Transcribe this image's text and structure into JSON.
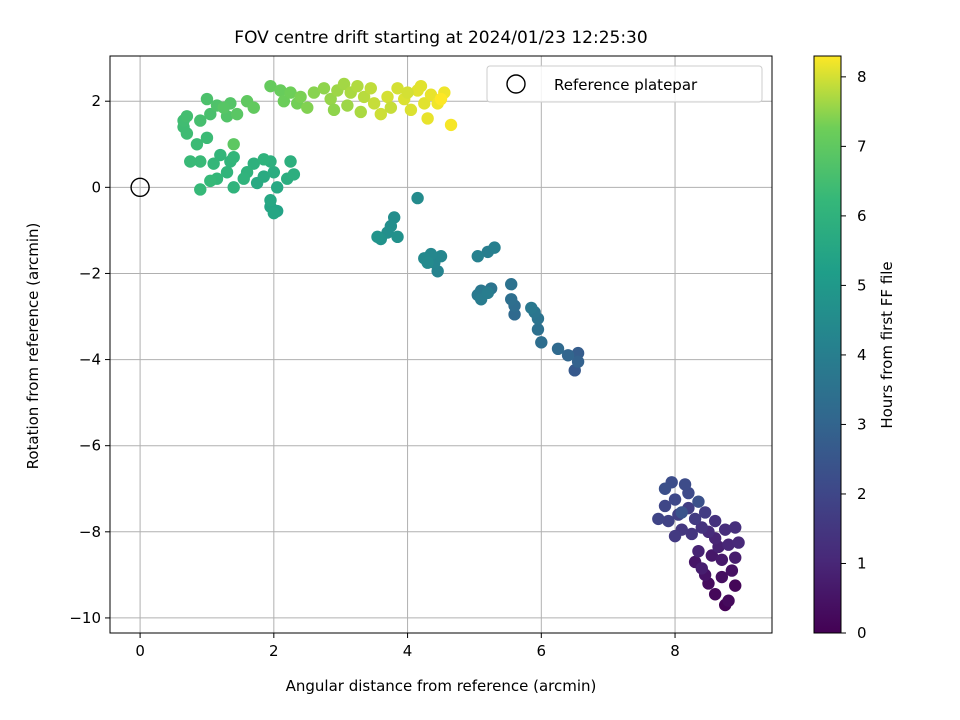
{
  "chart_data": {
    "type": "scatter",
    "title": "FOV centre drift starting at 2024/01/23 12:25:30",
    "xlabel": "Angular distance from reference (arcmin)",
    "ylabel": "Rotation from reference (arcmin)",
    "xlim": [
      -0.45,
      9.45
    ],
    "ylim": [
      -10.35,
      3.05
    ],
    "xticks": [
      0,
      2,
      4,
      6,
      8
    ],
    "xtick_labels": [
      "0",
      "2",
      "4",
      "6",
      "8"
    ],
    "yticks": [
      -10,
      -8,
      -6,
      -4,
      -2,
      0,
      2
    ],
    "ytick_labels": [
      "−10",
      "−8",
      "−6",
      "−4",
      "−2",
      "0",
      "2"
    ],
    "grid": true,
    "legend": {
      "position": "upper-right",
      "entries": [
        "Reference platepar"
      ]
    },
    "reference_point": {
      "x": 0,
      "y": 0,
      "label": "Reference platepar"
    },
    "colorbar": {
      "label": "Hours from first FF file",
      "colormap": "viridis",
      "range": [
        0,
        8.3
      ],
      "ticks": [
        0,
        1,
        2,
        3,
        4,
        5,
        6,
        7,
        8
      ],
      "tick_labels": [
        "0",
        "1",
        "2",
        "3",
        "4",
        "5",
        "6",
        "7",
        "8"
      ]
    },
    "series": [
      {
        "points": [
          [
            8.75,
            -9.7,
            0.05
          ],
          [
            8.9,
            -9.25,
            0.12
          ],
          [
            8.6,
            -9.45,
            0.18
          ],
          [
            8.8,
            -9.6,
            0.24
          ],
          [
            8.5,
            -9.2,
            0.3
          ],
          [
            8.7,
            -9.05,
            0.36
          ],
          [
            8.85,
            -8.9,
            0.42
          ],
          [
            8.45,
            -9.0,
            0.48
          ],
          [
            8.3,
            -8.7,
            0.54
          ],
          [
            8.55,
            -8.55,
            0.6
          ],
          [
            8.7,
            -8.65,
            0.66
          ],
          [
            8.9,
            -8.6,
            0.72
          ],
          [
            8.4,
            -8.85,
            0.78
          ],
          [
            8.65,
            -8.35,
            0.84
          ],
          [
            8.35,
            -8.45,
            0.9
          ],
          [
            8.6,
            -8.15,
            0.96
          ],
          [
            8.8,
            -8.3,
            1.02
          ],
          [
            8.95,
            -8.25,
            1.08
          ],
          [
            8.5,
            -8.0,
            1.14
          ],
          [
            8.75,
            -7.95,
            1.2
          ],
          [
            8.9,
            -7.9,
            1.26
          ],
          [
            8.6,
            -7.75,
            1.32
          ],
          [
            8.4,
            -7.9,
            1.38
          ],
          [
            8.25,
            -8.05,
            1.44
          ],
          [
            8.1,
            -7.95,
            1.5
          ],
          [
            8.0,
            -8.1,
            1.56
          ],
          [
            8.3,
            -7.7,
            1.62
          ],
          [
            8.45,
            -7.55,
            1.68
          ],
          [
            8.2,
            -7.45,
            1.74
          ],
          [
            8.05,
            -7.6,
            1.8
          ],
          [
            7.9,
            -7.75,
            1.86
          ],
          [
            7.75,
            -7.7,
            1.92
          ],
          [
            7.85,
            -7.4,
            1.98
          ],
          [
            8.0,
            -7.25,
            2.04
          ],
          [
            8.2,
            -7.1,
            2.1
          ],
          [
            8.15,
            -6.9,
            2.16
          ],
          [
            7.95,
            -6.85,
            2.22
          ],
          [
            7.85,
            -7.0,
            2.28
          ],
          [
            8.35,
            -7.3,
            2.34
          ],
          [
            8.1,
            -7.55,
            2.4
          ],
          [
            6.5,
            -4.25,
            2.6
          ],
          [
            6.55,
            -3.85,
            2.75
          ],
          [
            6.55,
            -4.05,
            2.9
          ],
          [
            6.4,
            -3.9,
            3.05
          ],
          [
            6.25,
            -3.75,
            3.2
          ],
          [
            6.0,
            -3.6,
            3.35
          ],
          [
            5.95,
            -3.3,
            3.45
          ],
          [
            5.95,
            -3.05,
            3.55
          ],
          [
            5.9,
            -2.9,
            3.65
          ],
          [
            5.85,
            -2.8,
            3.75
          ],
          [
            5.6,
            -2.95,
            3.2
          ],
          [
            5.6,
            -2.75,
            3.3
          ],
          [
            5.55,
            -2.6,
            3.4
          ],
          [
            5.55,
            -2.25,
            3.5
          ],
          [
            5.25,
            -2.35,
            3.6
          ],
          [
            5.1,
            -2.4,
            3.7
          ],
          [
            5.05,
            -2.5,
            3.8
          ],
          [
            5.1,
            -2.6,
            3.9
          ],
          [
            5.2,
            -2.45,
            3.95
          ],
          [
            5.2,
            -1.5,
            4.0
          ],
          [
            5.3,
            -1.4,
            4.05
          ],
          [
            5.05,
            -1.6,
            4.1
          ],
          [
            4.45,
            -1.95,
            4.2
          ],
          [
            4.4,
            -1.75,
            4.25
          ],
          [
            4.5,
            -1.6,
            4.3
          ],
          [
            4.35,
            -1.55,
            4.35
          ],
          [
            4.25,
            -1.65,
            4.4
          ],
          [
            4.3,
            -1.75,
            4.45
          ],
          [
            4.15,
            -0.25,
            4.5
          ],
          [
            3.8,
            -0.7,
            4.55
          ],
          [
            3.75,
            -0.9,
            4.6
          ],
          [
            3.7,
            -1.05,
            4.65
          ],
          [
            3.85,
            -1.15,
            4.7
          ],
          [
            3.6,
            -1.2,
            4.75
          ],
          [
            3.55,
            -1.15,
            4.8
          ],
          [
            2.05,
            -0.55,
            5.4
          ],
          [
            1.95,
            -0.45,
            5.45
          ],
          [
            2.0,
            -0.6,
            5.5
          ],
          [
            1.95,
            -0.3,
            5.55
          ],
          [
            2.05,
            0.0,
            5.6
          ],
          [
            1.75,
            0.1,
            5.65
          ],
          [
            1.85,
            0.25,
            5.7
          ],
          [
            2.0,
            0.35,
            5.75
          ],
          [
            2.2,
            0.2,
            5.8
          ],
          [
            2.3,
            0.3,
            5.85
          ],
          [
            2.25,
            0.6,
            5.9
          ],
          [
            1.95,
            0.6,
            5.9
          ],
          [
            1.7,
            0.55,
            5.95
          ],
          [
            1.85,
            0.65,
            6.0
          ],
          [
            1.6,
            0.35,
            6.0
          ],
          [
            1.55,
            0.2,
            6.05
          ],
          [
            1.4,
            0.0,
            6.05
          ],
          [
            1.3,
            0.35,
            6.1
          ],
          [
            1.35,
            0.6,
            6.1
          ],
          [
            1.4,
            0.7,
            6.15
          ],
          [
            1.2,
            0.75,
            6.15
          ],
          [
            1.1,
            0.55,
            6.2
          ],
          [
            1.15,
            0.2,
            6.2
          ],
          [
            1.05,
            0.15,
            6.25
          ],
          [
            0.9,
            -0.05,
            6.25
          ],
          [
            0.9,
            0.6,
            6.3
          ],
          [
            0.75,
            0.6,
            6.3
          ],
          [
            1.0,
            1.15,
            6.35
          ],
          [
            0.85,
            1.0,
            6.35
          ],
          [
            0.7,
            1.25,
            6.4
          ],
          [
            0.65,
            1.4,
            6.4
          ],
          [
            0.65,
            1.55,
            6.45
          ],
          [
            0.7,
            1.65,
            6.5
          ],
          [
            0.9,
            1.55,
            6.55
          ],
          [
            1.05,
            1.7,
            6.6
          ],
          [
            1.0,
            2.05,
            6.65
          ],
          [
            1.15,
            1.9,
            6.7
          ],
          [
            1.3,
            1.65,
            6.75
          ],
          [
            1.35,
            1.95,
            6.8
          ],
          [
            1.25,
            1.85,
            6.85
          ],
          [
            1.45,
            1.7,
            6.9
          ],
          [
            1.4,
            1.0,
            6.95
          ],
          [
            1.6,
            2.0,
            7.0
          ],
          [
            1.7,
            1.85,
            7.05
          ],
          [
            1.95,
            2.35,
            7.1
          ],
          [
            2.1,
            2.25,
            7.15
          ],
          [
            2.15,
            2.0,
            7.2
          ],
          [
            2.25,
            2.2,
            7.25
          ],
          [
            2.35,
            1.95,
            7.3
          ],
          [
            2.4,
            2.1,
            7.35
          ],
          [
            2.5,
            1.85,
            7.4
          ],
          [
            2.6,
            2.2,
            7.45
          ],
          [
            2.75,
            2.3,
            7.5
          ],
          [
            2.85,
            2.05,
            7.55
          ],
          [
            2.95,
            2.25,
            7.6
          ],
          [
            3.05,
            2.4,
            7.65
          ],
          [
            3.15,
            2.2,
            7.7
          ],
          [
            3.25,
            2.35,
            7.75
          ],
          [
            3.35,
            2.1,
            7.8
          ],
          [
            3.45,
            2.3,
            7.85
          ],
          [
            3.5,
            1.95,
            7.9
          ],
          [
            3.6,
            1.7,
            7.95
          ],
          [
            3.7,
            2.1,
            8.0
          ],
          [
            3.85,
            2.3,
            8.0
          ],
          [
            3.95,
            2.05,
            8.05
          ],
          [
            4.05,
            1.8,
            8.05
          ],
          [
            4.15,
            2.25,
            8.1
          ],
          [
            4.25,
            1.95,
            8.1
          ],
          [
            4.3,
            1.6,
            8.15
          ],
          [
            4.35,
            2.15,
            8.15
          ],
          [
            4.45,
            1.95,
            8.2
          ],
          [
            4.55,
            2.2,
            8.2
          ],
          [
            4.65,
            1.45,
            8.25
          ],
          [
            4.5,
            2.05,
            8.3
          ],
          [
            2.9,
            1.8,
            7.5
          ],
          [
            3.1,
            1.9,
            7.6
          ],
          [
            3.3,
            1.75,
            7.7
          ],
          [
            4.0,
            2.2,
            8.0
          ],
          [
            4.2,
            2.35,
            8.1
          ],
          [
            3.75,
            1.85,
            7.9
          ]
        ]
      }
    ]
  }
}
